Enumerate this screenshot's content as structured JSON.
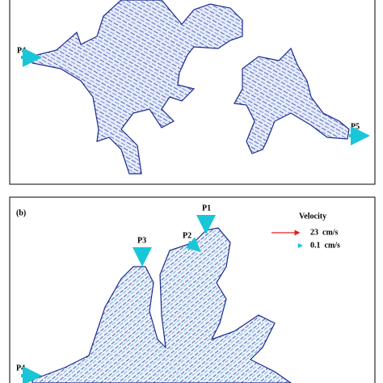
{
  "panel_a": {
    "ports": [
      "P4",
      "P5"
    ]
  },
  "panel_b": {
    "label": "(b)",
    "ports": [
      "P1",
      "P2",
      "P3",
      "P4"
    ],
    "legend": {
      "title": "Velocity",
      "items": [
        "23  cm/s",
        "0.1  cm/s"
      ]
    }
  }
}
